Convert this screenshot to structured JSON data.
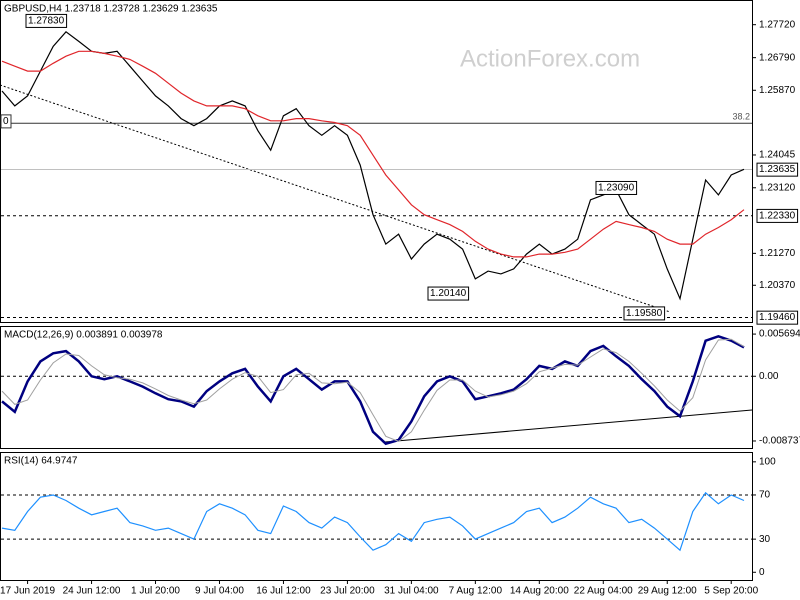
{
  "chart_data": [
    {
      "type": "line",
      "title": "GBPUSD,H4  1.23718 1.23728 1.23629 1.23635",
      "watermark": "ActionForex.com",
      "ylim": [
        1.1939,
        1.2836
      ],
      "yticks": [
        {
          "value": 1.2772,
          "label": "1.27720"
        },
        {
          "value": 1.2679,
          "label": "1.26790"
        },
        {
          "value": 1.2587,
          "label": "1.25870"
        },
        1.24045,
        {
          "value": 1.2312,
          "label": "1.23120"
        },
        {
          "value": 1.2127,
          "label": "1.21270"
        },
        {
          "value": 1.2037,
          "label": "1.20370"
        }
      ],
      "series": [
        {
          "color": "#000000",
          "values": [
            1.2585,
            1.2543,
            1.2571,
            1.2641,
            1.2711,
            1.2752,
            1.2725,
            1.2697,
            1.2691,
            1.2697,
            1.2655,
            1.2613,
            1.2571,
            1.2543,
            1.2507,
            1.2487,
            1.2507,
            1.2543,
            1.2557,
            1.2543,
            1.2473,
            1.2418,
            1.2515,
            1.2535,
            1.2487,
            1.246,
            1.2487,
            1.246,
            1.2376,
            1.2236,
            1.2153,
            1.2181,
            1.2111,
            1.2153,
            1.2181,
            1.2167,
            1.2139,
            1.2055,
            1.2077,
            1.2069,
            1.2083,
            1.2125,
            1.2153,
            1.2125,
            1.2139,
            1.2167,
            1.2278,
            1.2292,
            1.2306,
            1.2236,
            1.2208,
            1.2181,
            1.2083,
            1.1999,
            1.2167,
            1.2334,
            1.2292,
            1.2348,
            1.2364
          ]
        },
        {
          "color": "#e0262b",
          "values": [
            1.2669,
            1.2655,
            1.2641,
            1.2641,
            1.2663,
            1.2683,
            1.2697,
            1.2697,
            1.2691,
            1.2683,
            1.2674,
            1.2655,
            1.2635,
            1.2607,
            1.2579,
            1.2557,
            1.2543,
            1.2543,
            1.2543,
            1.2535,
            1.2515,
            1.2501,
            1.2501,
            1.2507,
            1.2507,
            1.2501,
            1.2496,
            1.2487,
            1.246,
            1.2404,
            1.2348,
            1.2306,
            1.2264,
            1.2236,
            1.2222,
            1.2208,
            1.2189,
            1.2161,
            1.2139,
            1.2125,
            1.2117,
            1.2117,
            1.2125,
            1.2125,
            1.213,
            1.2139,
            1.2167,
            1.2195,
            1.2217,
            1.2208,
            1.22,
            1.2189,
            1.2167,
            1.2153,
            1.2153,
            1.2181,
            1.22,
            1.2222,
            1.225
          ]
        }
      ],
      "current": 1.23635,
      "levels": [
        {
          "value": 1.2233,
          "label": "1.22330"
        },
        {
          "value": 1.1946,
          "label": "1.19460"
        }
      ],
      "fib": {
        "value": 1.2494,
        "label": "38.2",
        "start_label": "0"
      },
      "annotations": [
        {
          "value": 1.2783,
          "label": "1.27830"
        },
        {
          "value": 1.2309,
          "label": "1.23090"
        },
        {
          "value": 1.2014,
          "label": "1.20140"
        },
        {
          "value": 1.1958,
          "label": "1.19580"
        }
      ]
    },
    {
      "type": "line",
      "title": "MACD(12,26,9) 0.003891 0.003978",
      "ylim": [
        -0.00955,
        0.00665
      ],
      "yticks": [
        0.005694,
        {
          "value": 0,
          "label": "0.00"
        },
        -0.008737
      ],
      "levels": [
        0
      ],
      "series": [
        {
          "color": "#000080",
          "values": [
            -0.0034,
            -0.0048,
            -0.0007,
            0.002,
            0.0031,
            0.0034,
            0.002,
            0,
            -0.0004,
            0,
            -0.0007,
            -0.0014,
            -0.0023,
            -0.0031,
            -0.0034,
            -0.0041,
            -0.002,
            -0.0007,
            0.0004,
            0.001,
            -0.0014,
            -0.0034,
            0,
            0.001,
            -0.0004,
            -0.0018,
            -0.0007,
            -0.0007,
            -0.0034,
            -0.0075,
            -0.0091,
            -0.0086,
            -0.0061,
            -0.0027,
            -0.0007,
            0,
            -0.0007,
            -0.0031,
            -0.0027,
            -0.0023,
            -0.0018,
            -0.0004,
            0.0014,
            0.001,
            0.002,
            0.0014,
            0.0034,
            0.0041,
            0.0027,
            0.0014,
            -0.0004,
            -0.002,
            -0.0041,
            -0.0054,
            -0.0007,
            0.0048,
            0.0054,
            0.0048,
            0.0039
          ]
        },
        {
          "color": "#a0a0a0",
          "values": [
            -0.002,
            -0.0038,
            -0.0032,
            -0.0005,
            0.0018,
            0.003,
            0.0028,
            0.0014,
            0.0002,
            -0.0002,
            -0.0004,
            -0.0009,
            -0.0017,
            -0.0026,
            -0.0032,
            -0.0037,
            -0.0032,
            -0.0017,
            -0.0004,
            0.0005,
            0,
            -0.0022,
            -0.0018,
            0.0002,
            0.0004,
            -0.0009,
            -0.001,
            -0.0008,
            -0.0022,
            -0.0052,
            -0.0081,
            -0.0088,
            -0.0075,
            -0.0046,
            -0.0019,
            -0.0005,
            -0.0005,
            -0.002,
            -0.0028,
            -0.0025,
            -0.002,
            -0.001,
            0.0006,
            0.0011,
            0.0016,
            0.0015,
            0.0026,
            0.0037,
            0.0032,
            0.002,
            0.0004,
            -0.0013,
            -0.0032,
            -0.0047,
            -0.0029,
            0.0022,
            0.0049,
            0.005,
            0.004
          ]
        }
      ]
    },
    {
      "type": "line",
      "title": "RSI(14) 64.9747",
      "ylim": [
        -7,
        108
      ],
      "yticks": [
        100,
        70,
        30,
        0
      ],
      "levels": [
        70,
        30
      ],
      "series": [
        {
          "color": "#1e90ff",
          "values": [
            40,
            38,
            55,
            68,
            70,
            65,
            58,
            52,
            55,
            58,
            45,
            42,
            38,
            40,
            35,
            30,
            55,
            62,
            58,
            52,
            38,
            35,
            60,
            55,
            45,
            40,
            50,
            45,
            32,
            20,
            25,
            35,
            28,
            45,
            48,
            50,
            42,
            30,
            35,
            40,
            45,
            55,
            58,
            45,
            50,
            58,
            68,
            62,
            58,
            45,
            48,
            40,
            30,
            20,
            55,
            72,
            62,
            70,
            65
          ]
        }
      ],
      "categories": [
        null,
        null,
        "17 Jun 2019",
        null,
        null,
        null,
        null,
        "24 Jun 12:00",
        null,
        null,
        null,
        null,
        "1 Jul 20:00",
        null,
        null,
        null,
        null,
        "9 Jul 04:00",
        null,
        null,
        null,
        null,
        "16 Jul 12:00",
        null,
        null,
        null,
        null,
        "23 Jul 20:00",
        null,
        null,
        null,
        null,
        "31 Jul 04:00",
        null,
        null,
        null,
        null,
        "7 Aug 12:00",
        null,
        null,
        null,
        null,
        "14 Aug 20:00",
        null,
        null,
        null,
        null,
        "22 Aug 04:00",
        null,
        null,
        null,
        null,
        "29 Aug 12:00",
        null,
        null,
        null,
        null,
        "5 Sep 20:00",
        null
      ]
    }
  ]
}
